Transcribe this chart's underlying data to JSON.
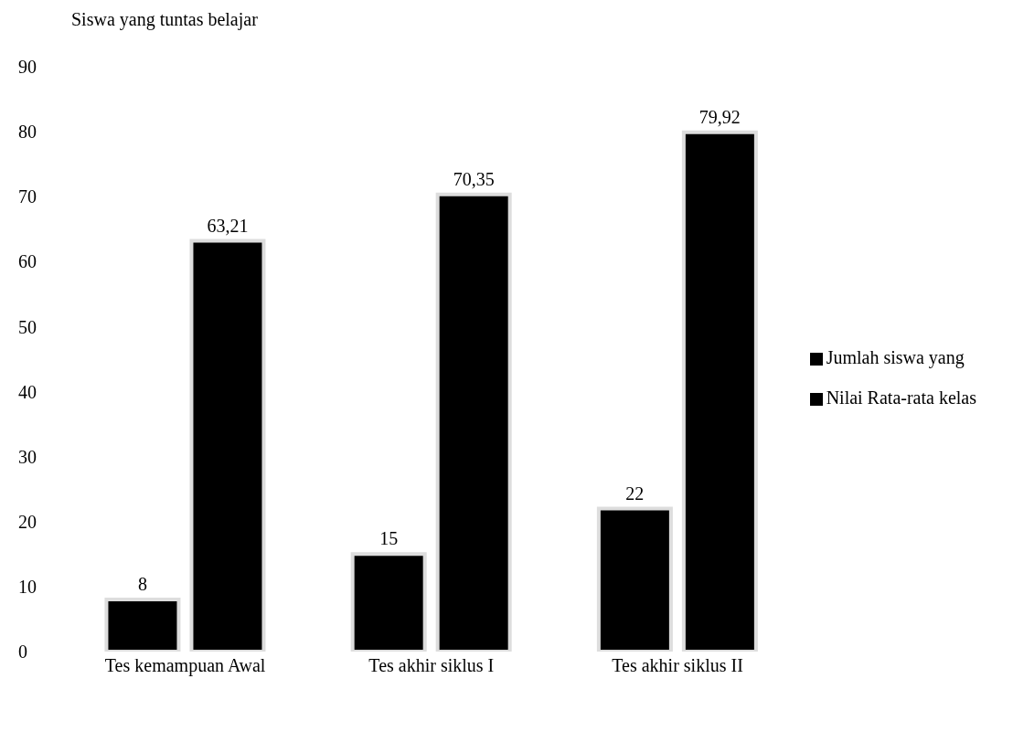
{
  "chart_data": {
    "type": "bar",
    "title": "Siswa yang tuntas belajar",
    "categories": [
      "Tes kemampuan  Awal",
      "Tes akhir siklus I",
      "Tes akhir siklus II"
    ],
    "series": [
      {
        "name": "Jumlah siswa yang",
        "color": "#000000",
        "values": [
          8,
          15,
          22
        ],
        "value_labels": [
          "8",
          "15",
          "22"
        ]
      },
      {
        "name": "Nilai Rata-rata kelas",
        "color": "#000000",
        "values": [
          63.21,
          70.35,
          79.92
        ],
        "value_labels": [
          "63,21",
          "70,35",
          "79,92"
        ]
      }
    ],
    "ylim": [
      0,
      90
    ],
    "yticks": [
      0,
      10,
      20,
      30,
      40,
      50,
      60,
      70,
      80,
      90
    ],
    "legend": "right"
  }
}
